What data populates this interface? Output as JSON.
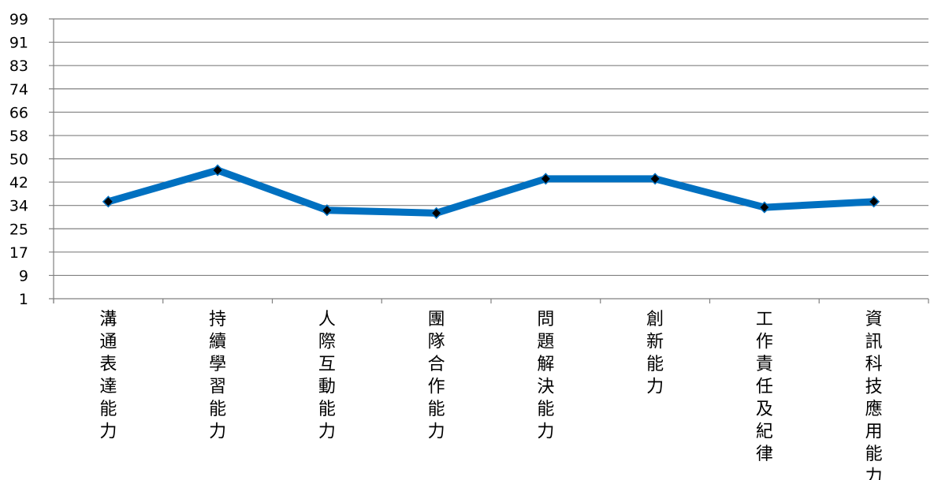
{
  "chart_data": {
    "type": "line",
    "title": "",
    "xlabel": "",
    "ylabel": "",
    "ylim": [
      1,
      99
    ],
    "yticks": [
      "1",
      "9",
      "17",
      "25",
      "34",
      "42",
      "50",
      "58",
      "66",
      "74",
      "83",
      "91",
      "99"
    ],
    "grid": true,
    "legend": "none",
    "categories": [
      "溝通表達能力",
      "持續學習能力",
      "人際互動能力",
      "團隊合作能力",
      "問題解決能力",
      "創新能力",
      "工作責任及紀律",
      "資訊科技應用能力"
    ],
    "series": [
      {
        "values": [
          35,
          46,
          32,
          31,
          43,
          43,
          33,
          35
        ]
      }
    ],
    "colors": {
      "line": "#0070c0",
      "marker": "#000000",
      "grid": "#808080",
      "axis": "#808080"
    }
  }
}
